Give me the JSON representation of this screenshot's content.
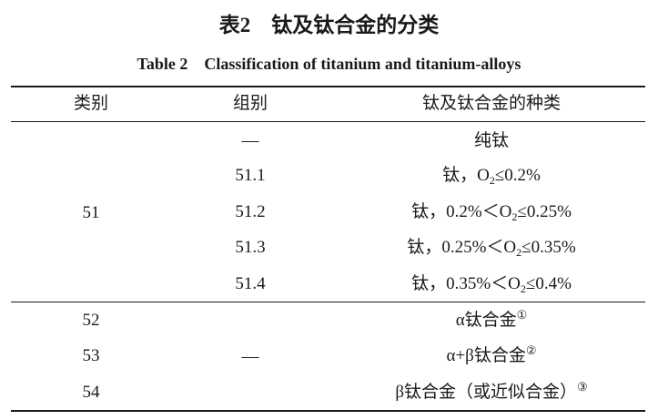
{
  "caption": {
    "cn": "表2　钛及钛合金的分类",
    "en": "Table 2　Classification of titanium and titanium-alloys"
  },
  "headers": [
    "类别",
    "组别",
    "钛及钛合金的种类"
  ],
  "rows": [
    {
      "group": "—",
      "type": {
        "pre": "纯钛",
        "sub": "",
        "post": "",
        "sup": ""
      }
    },
    {
      "group": "51.1",
      "type": {
        "pre": "钛，O",
        "sub": "2",
        "post": "≤0.2%",
        "sup": ""
      }
    },
    {
      "group": "51.2",
      "type": {
        "pre": "钛，0.2%＜O",
        "sub": "2",
        "post": "≤0.25%",
        "sup": ""
      }
    },
    {
      "group": "51.3",
      "type": {
        "pre": "钛，0.25%＜O",
        "sub": "2",
        "post": "≤0.35%",
        "sup": ""
      }
    },
    {
      "group": "51.4",
      "type": {
        "pre": "钛，0.35%＜O",
        "sub": "2",
        "post": "≤0.4%",
        "sup": ""
      }
    },
    {
      "category": "52",
      "type": {
        "pre": "α钛合金",
        "sub": "",
        "post": "",
        "sup": "①"
      }
    },
    {
      "category": "53",
      "type": {
        "pre": "α+β钛合金",
        "sub": "",
        "post": "",
        "sup": "②"
      }
    },
    {
      "category": "54",
      "type": {
        "pre": "β钛合金（或近似合金）",
        "sub": "",
        "post": "",
        "sup": "③"
      }
    }
  ],
  "merged": {
    "category_51": "51",
    "group_52_54": "—"
  }
}
